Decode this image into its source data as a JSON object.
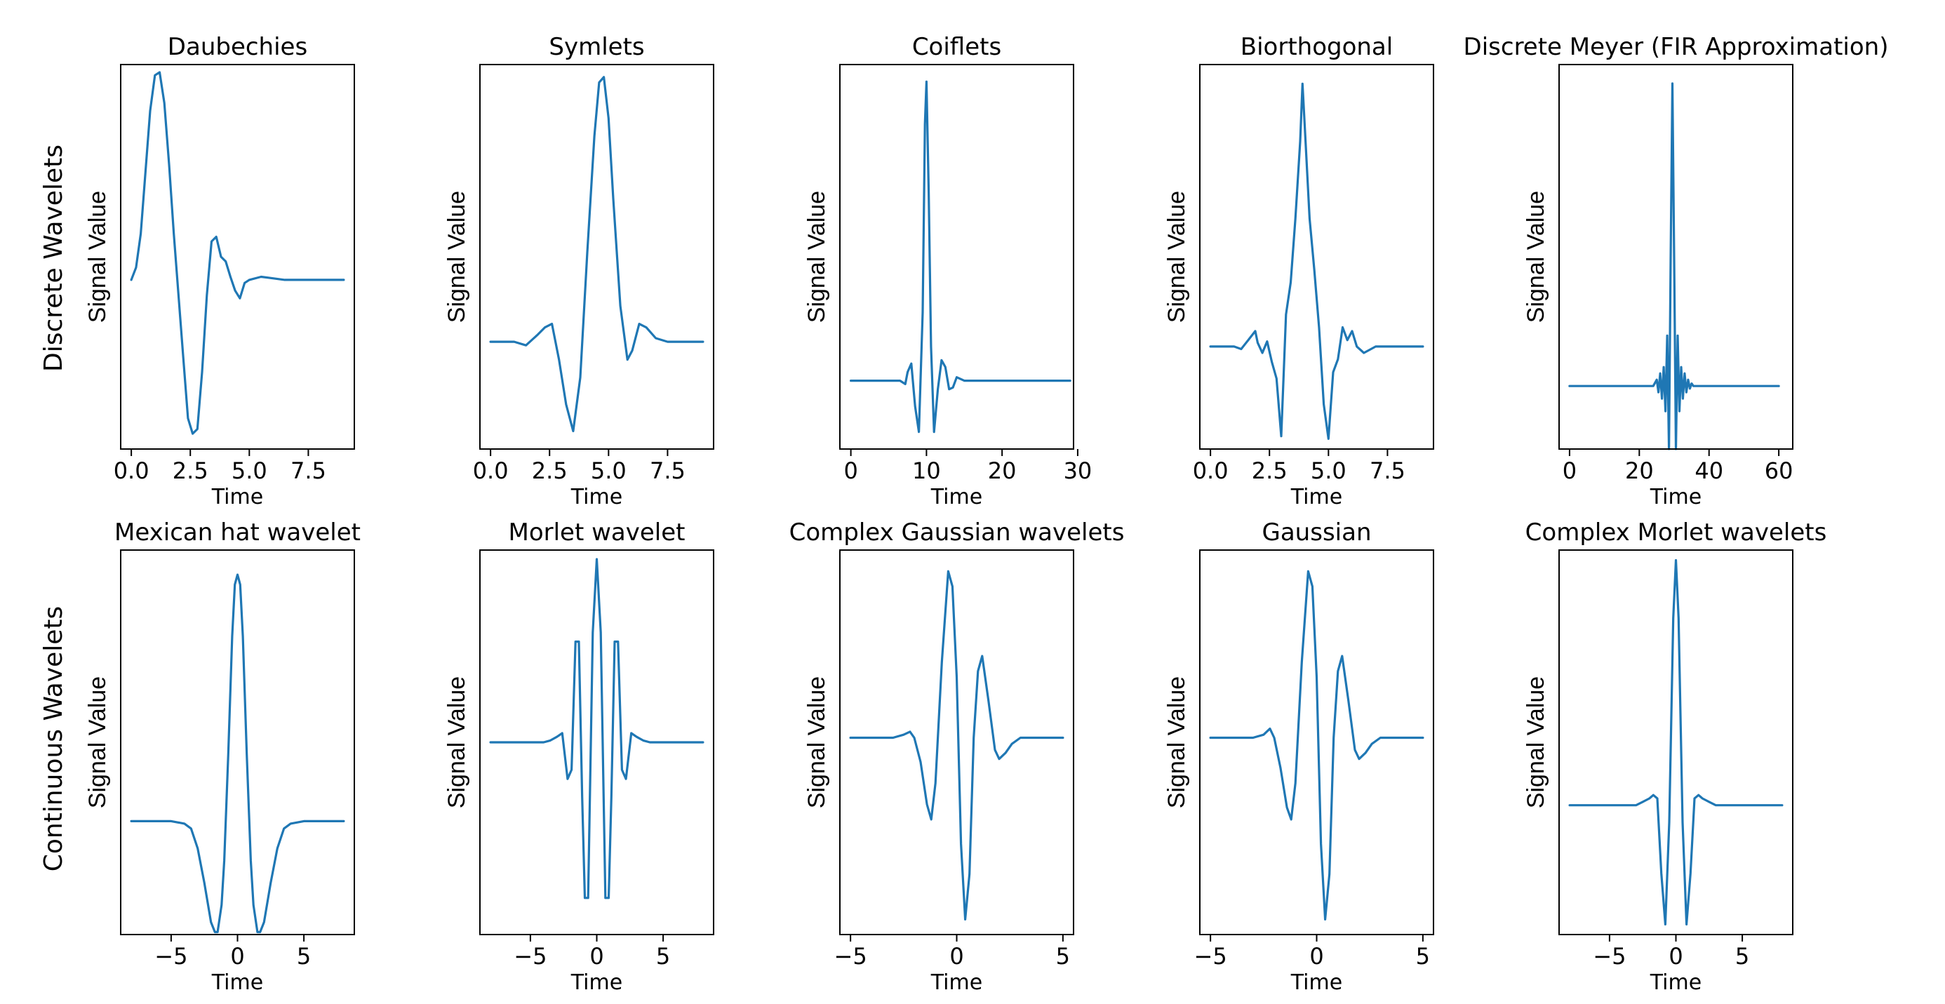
{
  "figure": {
    "row_labels": [
      "Discrete Wavelets",
      "Continuous Wavelets"
    ],
    "series_color": "#1f77b4"
  },
  "chart_data": [
    {
      "type": "line",
      "title": "Daubechies",
      "xlabel": "Time",
      "ylabel": "Signal Value",
      "xlim": [
        -0.45,
        9.45
      ],
      "xticks": [
        0,
        2.5,
        5,
        7.5
      ],
      "xticklabels": [
        "0.0",
        "2.5",
        "5.0",
        "7.5"
      ],
      "ylim": [
        -1.1,
        1.4
      ],
      "x": [
        0,
        0.2,
        0.4,
        0.6,
        0.8,
        1.0,
        1.2,
        1.4,
        1.6,
        1.8,
        2.0,
        2.2,
        2.4,
        2.6,
        2.8,
        3.0,
        3.2,
        3.4,
        3.6,
        3.8,
        4.0,
        4.2,
        4.4,
        4.6,
        4.8,
        5.0,
        5.5,
        6.0,
        6.5,
        7.0,
        8.0,
        9.0
      ],
      "values": [
        0,
        0.08,
        0.3,
        0.7,
        1.1,
        1.33,
        1.35,
        1.15,
        0.75,
        0.3,
        -0.1,
        -0.5,
        -0.9,
        -1.0,
        -0.97,
        -0.6,
        -0.1,
        0.25,
        0.28,
        0.15,
        0.12,
        0.02,
        -0.07,
        -0.12,
        -0.02,
        0.0,
        0.02,
        0.01,
        0.0,
        0.0,
        0.0,
        0.0
      ]
    },
    {
      "type": "line",
      "title": "Symlets",
      "xlabel": "Time",
      "ylabel": "Signal Value",
      "xlim": [
        -0.45,
        9.45
      ],
      "xticks": [
        0,
        2.5,
        5,
        7.5
      ],
      "xticklabels": [
        "0.0",
        "2.5",
        "5.0",
        "7.5"
      ],
      "ylim": [
        -0.6,
        1.55
      ],
      "x": [
        0,
        0.5,
        1.0,
        1.5,
        2.0,
        2.3,
        2.6,
        2.9,
        3.2,
        3.5,
        3.8,
        4.1,
        4.4,
        4.6,
        4.8,
        5.0,
        5.2,
        5.5,
        5.8,
        6.0,
        6.3,
        6.6,
        7.0,
        7.5,
        8.0,
        9.0
      ],
      "values": [
        0,
        0.0,
        0.0,
        -0.02,
        0.04,
        0.08,
        0.1,
        -0.1,
        -0.35,
        -0.5,
        -0.2,
        0.5,
        1.15,
        1.45,
        1.48,
        1.25,
        0.8,
        0.2,
        -0.1,
        -0.05,
        0.1,
        0.08,
        0.02,
        0.0,
        0.0,
        0.0
      ]
    },
    {
      "type": "line",
      "title": "Coiflets",
      "xlabel": "Time",
      "ylabel": "Signal Value",
      "xlim": [
        -1.45,
        29.45
      ],
      "xticks": [
        0,
        10,
        20,
        30
      ],
      "xticklabels": [
        "0",
        "10",
        "20",
        "30"
      ],
      "ylim": [
        -0.4,
        1.85
      ],
      "x": [
        0,
        5,
        6.5,
        7.2,
        7.5,
        8,
        8.5,
        9,
        9.5,
        9.8,
        10,
        10.3,
        10.6,
        11,
        11.5,
        12,
        12.5,
        13,
        13.5,
        14,
        15,
        16,
        20,
        29
      ],
      "values": [
        0,
        0,
        0,
        -0.02,
        0.05,
        0.1,
        -0.15,
        -0.3,
        0.4,
        1.5,
        1.75,
        1.1,
        0.2,
        -0.3,
        -0.05,
        0.12,
        0.08,
        -0.05,
        -0.04,
        0.02,
        0,
        0,
        0,
        0
      ]
    },
    {
      "type": "line",
      "title": "Biorthogonal",
      "xlabel": "Time",
      "ylabel": "Signal Value",
      "xlim": [
        -0.45,
        9.45
      ],
      "xticks": [
        0,
        2.5,
        5,
        7.5
      ],
      "xticklabels": [
        "0.0",
        "2.5",
        "5.0",
        "7.5"
      ],
      "ylim": [
        -0.8,
        2.2
      ],
      "x": [
        0,
        0.5,
        1.0,
        1.3,
        1.6,
        1.9,
        2.0,
        2.2,
        2.4,
        2.6,
        2.8,
        3.0,
        3.2,
        3.4,
        3.6,
        3.8,
        3.9,
        4.0,
        4.2,
        4.4,
        4.6,
        4.8,
        5.0,
        5.2,
        5.4,
        5.6,
        5.8,
        6.0,
        6.2,
        6.5,
        7.0,
        8.0,
        9.0
      ],
      "values": [
        0,
        0,
        0,
        -0.02,
        0.05,
        0.12,
        0.03,
        -0.05,
        0.04,
        -0.12,
        -0.25,
        -0.7,
        0.25,
        0.5,
        1.0,
        1.6,
        2.05,
        1.7,
        1.0,
        0.6,
        0.15,
        -0.45,
        -0.72,
        -0.2,
        -0.1,
        0.15,
        0.05,
        0.12,
        0.0,
        -0.05,
        0.0,
        0.0,
        0.0
      ]
    },
    {
      "type": "line",
      "title": "Discrete Meyer (FIR Approximation)",
      "xlabel": "Time",
      "ylabel": "Signal Value",
      "xlim": [
        -3,
        64
      ],
      "xticks": [
        0,
        20,
        40,
        60
      ],
      "xticklabels": [
        "0",
        "20",
        "40",
        "60"
      ],
      "ylim": [
        -0.5,
        2.55
      ],
      "x": [
        0,
        20,
        24,
        25,
        25.5,
        26,
        26.5,
        27,
        27.5,
        28,
        28.5,
        29,
        29.5,
        30,
        30.5,
        31,
        31.5,
        32,
        32.5,
        33,
        33.5,
        34,
        34.5,
        35,
        35.5,
        36,
        40,
        60
      ],
      "values": [
        0,
        0,
        0,
        0.05,
        -0.05,
        0.1,
        -0.1,
        0.15,
        -0.2,
        0.4,
        -0.5,
        1.0,
        2.4,
        1.0,
        -0.5,
        0.4,
        -0.2,
        0.15,
        -0.1,
        0.1,
        -0.05,
        0.05,
        -0.02,
        0.02,
        0.0,
        0.0,
        0.0,
        0.0
      ]
    },
    {
      "type": "line",
      "title": "Mexican hat wavelet",
      "xlabel": "Time",
      "ylabel": "Signal Value",
      "xlim": [
        -8.8,
        8.8
      ],
      "xticks": [
        -5,
        0,
        5
      ],
      "xticklabels": [
        "−5",
        "0",
        "5"
      ],
      "ylim": [
        -0.46,
        1.1
      ],
      "x": [
        -8,
        -7,
        -6,
        -5,
        -4,
        -3.5,
        -3,
        -2.5,
        -2,
        -1.7,
        -1.5,
        -1.2,
        -1,
        -0.7,
        -0.4,
        -0.2,
        0,
        0.2,
        0.4,
        0.7,
        1,
        1.2,
        1.5,
        1.7,
        2,
        2.5,
        3,
        3.5,
        4,
        5,
        6,
        7,
        8
      ],
      "values": [
        0,
        0,
        0,
        0,
        -0.01,
        -0.03,
        -0.11,
        -0.25,
        -0.41,
        -0.45,
        -0.45,
        -0.34,
        -0.16,
        0.27,
        0.75,
        0.96,
        1.0,
        0.96,
        0.75,
        0.27,
        -0.16,
        -0.34,
        -0.45,
        -0.45,
        -0.41,
        -0.25,
        -0.11,
        -0.03,
        -0.01,
        0,
        0,
        0,
        0
      ]
    },
    {
      "type": "line",
      "title": "Morlet wavelet",
      "xlabel": "Time",
      "ylabel": "Signal Value",
      "xlim": [
        -8.8,
        8.8
      ],
      "xticks": [
        -5,
        0,
        5
      ],
      "xticklabels": [
        "−5",
        "0",
        "5"
      ],
      "ylim": [
        -1.05,
        1.05
      ],
      "x": [
        -8,
        -6,
        -4,
        -3.5,
        -3,
        -2.6,
        -2.2,
        -1.9,
        -1.6,
        -1.35,
        -1.1,
        -0.9,
        -0.65,
        -0.3,
        0,
        0.3,
        0.65,
        0.9,
        1.1,
        1.35,
        1.6,
        1.9,
        2.2,
        2.6,
        3,
        3.5,
        4,
        6,
        8
      ],
      "values": [
        0,
        0,
        0,
        0.01,
        0.03,
        0.05,
        -0.2,
        -0.15,
        0.55,
        0.55,
        -0.3,
        -0.85,
        -0.85,
        0.6,
        1.0,
        0.6,
        -0.85,
        -0.85,
        -0.3,
        0.55,
        0.55,
        -0.15,
        -0.2,
        0.05,
        0.03,
        0.01,
        0,
        0,
        0
      ]
    },
    {
      "type": "line",
      "title": "Complex Gaussian wavelets",
      "xlabel": "Time",
      "ylabel": "Signal Value",
      "xlim": [
        -5.5,
        5.5
      ],
      "xticks": [
        -5,
        0,
        5
      ],
      "xticklabels": [
        "−5",
        "0",
        "5"
      ],
      "ylim": [
        -0.65,
        0.62
      ],
      "x": [
        -5,
        -4,
        -3,
        -2.5,
        -2.2,
        -2,
        -1.7,
        -1.4,
        -1.2,
        -1,
        -0.7,
        -0.4,
        -0.2,
        0,
        0.2,
        0.4,
        0.6,
        0.8,
        1,
        1.2,
        1.5,
        1.8,
        2,
        2.3,
        2.6,
        3,
        3.5,
        4,
        5
      ],
      "values": [
        0,
        0,
        0.0,
        0.01,
        0.02,
        0.0,
        -0.08,
        -0.22,
        -0.27,
        -0.15,
        0.25,
        0.55,
        0.5,
        0.2,
        -0.35,
        -0.6,
        -0.45,
        0.0,
        0.22,
        0.27,
        0.12,
        -0.04,
        -0.07,
        -0.05,
        -0.02,
        0.0,
        0,
        0,
        0
      ]
    },
    {
      "type": "line",
      "title": "Gaussian",
      "xlabel": "Time",
      "ylabel": "Signal Value",
      "xlim": [
        -5.5,
        5.5
      ],
      "xticks": [
        -5,
        0,
        5
      ],
      "xticklabels": [
        "−5",
        "0",
        "5"
      ],
      "ylim": [
        -0.65,
        0.62
      ],
      "x": [
        -5,
        -4,
        -3,
        -2.5,
        -2.2,
        -2,
        -1.7,
        -1.4,
        -1.2,
        -1,
        -0.7,
        -0.4,
        -0.2,
        0,
        0.2,
        0.4,
        0.6,
        0.8,
        1,
        1.2,
        1.5,
        1.8,
        2,
        2.3,
        2.6,
        3,
        3.5,
        4,
        5
      ],
      "values": [
        0,
        0,
        0.0,
        0.01,
        0.03,
        0.0,
        -0.1,
        -0.23,
        -0.27,
        -0.15,
        0.25,
        0.55,
        0.5,
        0.2,
        -0.35,
        -0.6,
        -0.45,
        0.0,
        0.22,
        0.27,
        0.12,
        -0.04,
        -0.07,
        -0.05,
        -0.02,
        0.0,
        0,
        0,
        0
      ]
    },
    {
      "type": "line",
      "title": "Complex Morlet wavelets",
      "xlabel": "Time",
      "ylabel": "Signal Value",
      "xlim": [
        -8.8,
        8.8
      ],
      "xticks": [
        -5,
        0,
        5
      ],
      "xticklabels": [
        "−5",
        "0",
        "5"
      ],
      "ylim": [
        -0.38,
        0.75
      ],
      "x": [
        -8,
        -6,
        -4,
        -3,
        -2.5,
        -2,
        -1.7,
        -1.4,
        -1.1,
        -0.8,
        -0.5,
        -0.2,
        0,
        0.2,
        0.5,
        0.8,
        1.1,
        1.4,
        1.7,
        2,
        2.5,
        3,
        4,
        6,
        8
      ],
      "values": [
        0,
        0,
        0,
        0.0,
        0.01,
        0.02,
        0.03,
        0.02,
        -0.2,
        -0.35,
        -0.05,
        0.55,
        0.72,
        0.55,
        -0.05,
        -0.35,
        -0.2,
        0.02,
        0.03,
        0.02,
        0.01,
        0.0,
        0,
        0,
        0
      ]
    }
  ]
}
